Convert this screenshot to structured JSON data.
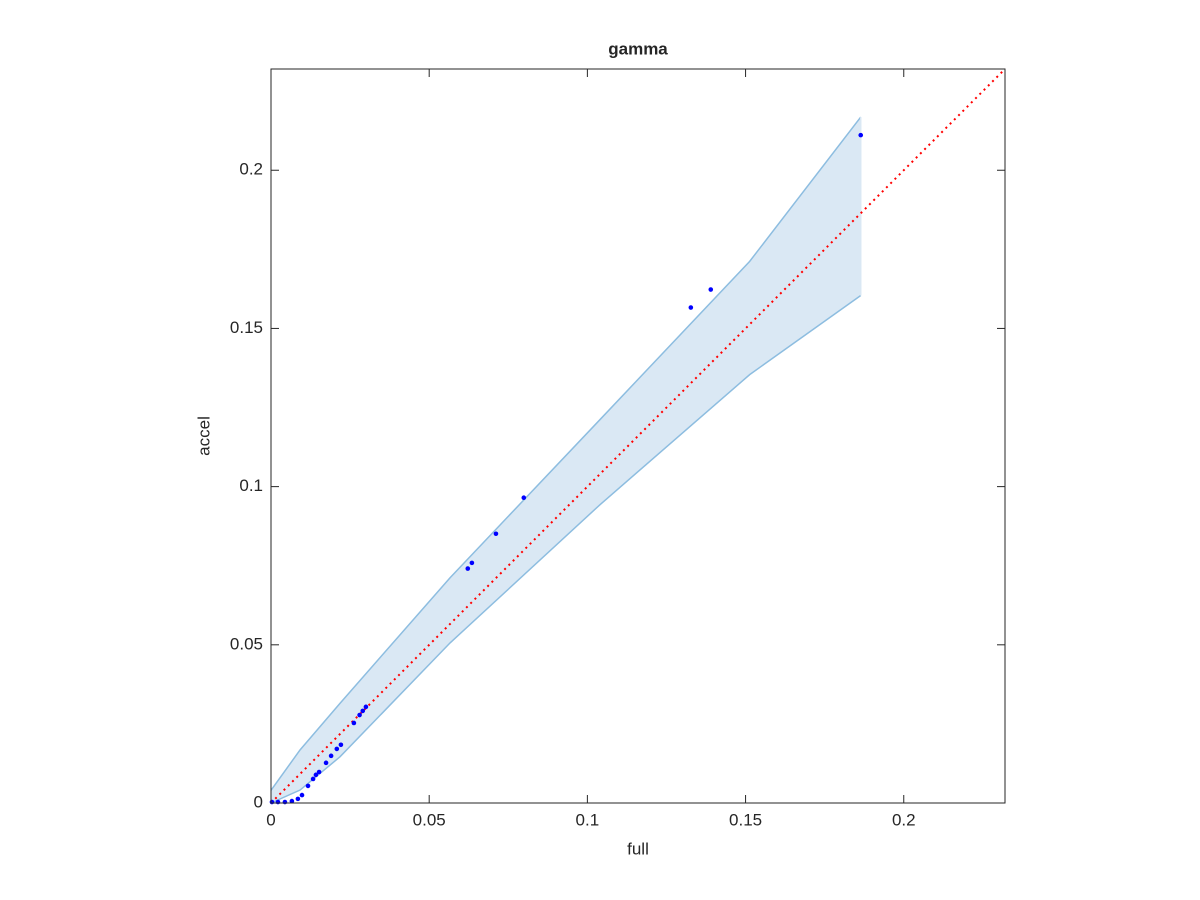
{
  "chart_data": {
    "type": "scatter",
    "title": "gamma",
    "x_label": "full",
    "y_label": "accel",
    "xlim": [
      0,
      0.232
    ],
    "ylim": [
      0,
      0.232
    ],
    "xticks": [
      0,
      0.05,
      0.1,
      0.15,
      0.2
    ],
    "yticks": [
      0,
      0.05,
      0.1,
      0.15,
      0.2
    ],
    "points": {
      "color": "#0000ff",
      "x": [
        0.1864,
        0.139,
        0.1327,
        0.0799,
        0.0711,
        0.0635,
        0.0622,
        0.03,
        0.029,
        0.028,
        0.0262,
        0.0221,
        0.0208,
        0.019,
        0.0174,
        0.0152,
        0.0142,
        0.0133,
        0.0117,
        0.0098,
        0.0085,
        0.0066,
        0.0044,
        0.0022,
        0.0003
      ],
      "y": [
        0.2111,
        0.1623,
        0.1566,
        0.0965,
        0.0851,
        0.0759,
        0.0741,
        0.0304,
        0.0291,
        0.0278,
        0.0253,
        0.0184,
        0.0171,
        0.0149,
        0.0127,
        0.0098,
        0.0089,
        0.0076,
        0.0054,
        0.0025,
        0.0013,
        0.0006,
        0.0003,
        0.0003,
        0.0003
      ]
    },
    "band": {
      "color": "#8dbde0",
      "fill": "#dae8f4",
      "x": [
        0,
        0.0092,
        0.0218,
        0.0566,
        0.104,
        0.1513,
        0.1864
      ],
      "upper": [
        0.004,
        0.0168,
        0.0315,
        0.0712,
        0.1212,
        0.1712,
        0.2168
      ],
      "lower": [
        0,
        0.0041,
        0.0146,
        0.0506,
        0.0943,
        0.1354,
        0.1604
      ]
    },
    "reference": {
      "color": "#ff0000",
      "x": [
        0,
        0.232
      ],
      "y": [
        0,
        0.232
      ]
    }
  }
}
